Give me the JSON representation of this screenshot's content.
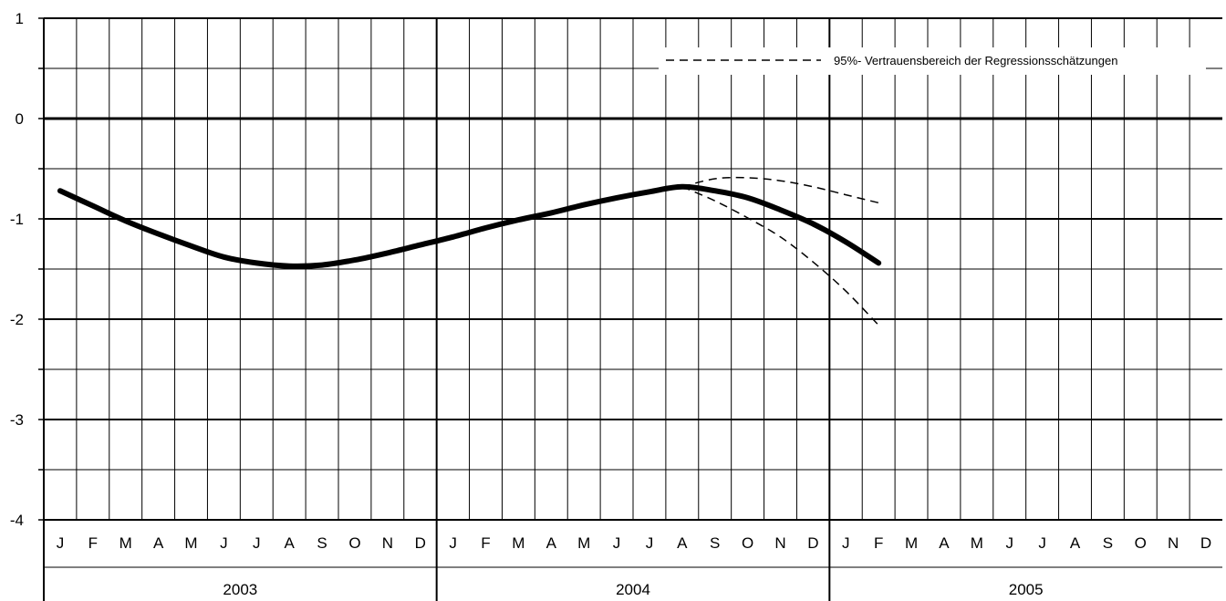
{
  "chart_data": {
    "type": "line",
    "y_ticks": [
      1,
      0,
      -1,
      -2,
      -3,
      -4
    ],
    "y_tick_labels": [
      "1",
      "0",
      "-1",
      "-2",
      "-3",
      "-4"
    ],
    "ylim": [
      -4,
      1
    ],
    "grid": true,
    "months": [
      "J",
      "F",
      "M",
      "A",
      "M",
      "J",
      "J",
      "A",
      "S",
      "O",
      "N",
      "D",
      "J",
      "F",
      "M",
      "A",
      "M",
      "J",
      "J",
      "A",
      "S",
      "O",
      "N",
      "D",
      "J",
      "F",
      "M",
      "A",
      "M",
      "J",
      "J",
      "A",
      "S",
      "O",
      "N",
      "D"
    ],
    "years": [
      "2003",
      "2004",
      "2005"
    ],
    "legend": {
      "label": "95%- Vertrauensbereich der Regressionsschätzungen",
      "placement": "top-right"
    },
    "series": [
      {
        "role": "estimate",
        "style": "solid-thick",
        "x": [
          "2003-01",
          "2003-02",
          "2003-03",
          "2003-04",
          "2003-05",
          "2003-06",
          "2003-07",
          "2003-08",
          "2003-09",
          "2003-10",
          "2003-11",
          "2003-12",
          "2004-01",
          "2004-02",
          "2004-03",
          "2004-04",
          "2004-05",
          "2004-06",
          "2004-07",
          "2004-08",
          "2004-09",
          "2004-10",
          "2004-11",
          "2004-12",
          "2005-01",
          "2005-02"
        ],
        "values": [
          -0.72,
          -0.87,
          -1.02,
          -1.15,
          -1.27,
          -1.38,
          -1.44,
          -1.47,
          -1.46,
          -1.41,
          -1.34,
          -1.26,
          -1.18,
          -1.09,
          -1.01,
          -0.94,
          -0.86,
          -0.79,
          -0.73,
          -0.68,
          -0.72,
          -0.79,
          -0.91,
          -1.05,
          -1.23,
          -1.44
        ]
      },
      {
        "role": "upper-bound",
        "style": "dashed",
        "x": [
          "2004-08",
          "2004-09",
          "2004-10",
          "2004-11",
          "2004-12",
          "2005-01",
          "2005-02"
        ],
        "values": [
          -0.68,
          -0.6,
          -0.59,
          -0.62,
          -0.68,
          -0.76,
          -0.84
        ]
      },
      {
        "role": "lower-bound",
        "style": "dashed",
        "x": [
          "2004-08",
          "2004-09",
          "2004-10",
          "2004-11",
          "2004-12",
          "2005-01",
          "2005-02"
        ],
        "values": [
          -0.68,
          -0.82,
          -0.99,
          -1.18,
          -1.43,
          -1.72,
          -2.06
        ]
      }
    ]
  }
}
